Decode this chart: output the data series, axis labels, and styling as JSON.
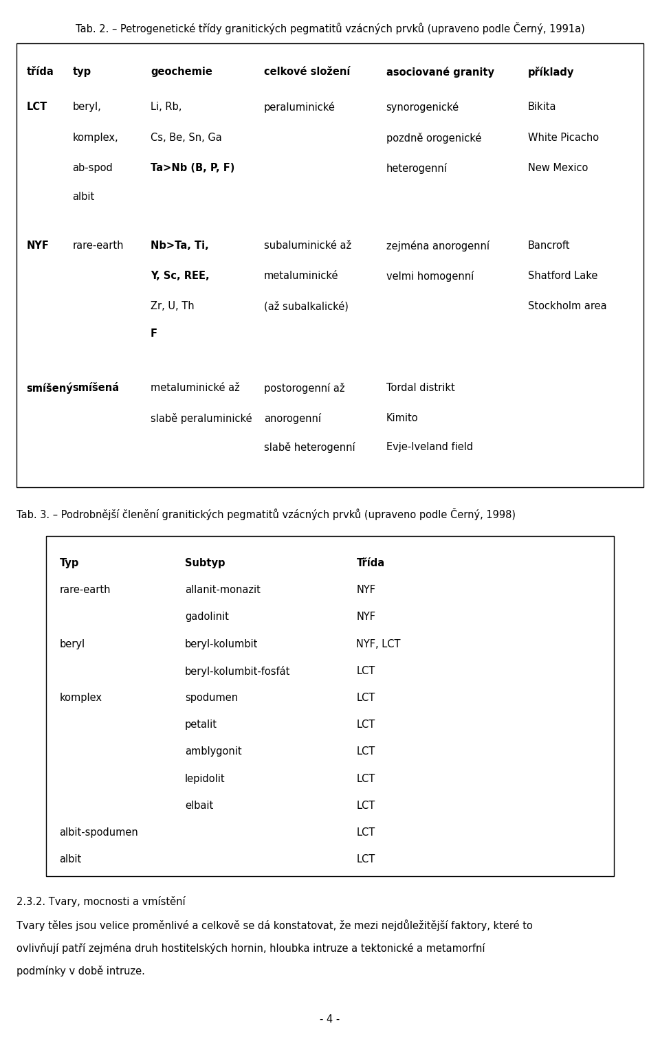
{
  "title1": "Tab. 2. – Petrogenetické třídy granitických pegmatitů vzácných prvků (upraveno podle Černý, 1991a)",
  "title2": "Tab. 3. – Podrobnější členění granitických pegmatitů vzácných prvků (upraveno podle Černý, 1998)",
  "section_heading": "2.3.2. Tvary, mocnosti a vmístění",
  "paragraph_lines": [
    "Tvary těles jsou velice proměnlivé a celkově se dá konstatovat, že mezi nejdůležitější faktory, které to",
    "ovlivňují patří zejména druh hostitelských hornin, hloubka intruze a tektonické a metamorfní",
    "podmínky v době intruze."
  ],
  "footer": "- 4 -",
  "table1_headers": [
    "třída",
    "typ",
    "geochemie",
    "celkové složení",
    "asociované granity",
    "příklady"
  ],
  "table1_rows": [
    {
      "col0": "LCT",
      "col1": "beryl,",
      "col2": "Li, Rb,",
      "col3": "peraluminické",
      "col4": "synorogenické",
      "col5": "Bikita",
      "bold0": true,
      "bold1": false,
      "bold2": false
    },
    {
      "col0": "",
      "col1": "komplex,",
      "col2": "Cs, Be, Sn, Ga",
      "col3": "",
      "col4": "pozdně orogenické",
      "col5": "White Picacho",
      "bold0": false,
      "bold1": false,
      "bold2": false
    },
    {
      "col0": "",
      "col1": "ab-spod",
      "col2": "Ta>Nb (B, P, F)",
      "col3": "",
      "col4": "heterogenní",
      "col5": "New Mexico",
      "bold0": false,
      "bold1": false,
      "bold2": true
    },
    {
      "col0": "",
      "col1": "albit",
      "col2": "",
      "col3": "",
      "col4": "",
      "col5": "",
      "bold0": false,
      "bold1": false,
      "bold2": false
    },
    {
      "col0": "NYF",
      "col1": "rare-earth",
      "col2": "Nb>Ta, Ti,",
      "col3": "subaluminické až",
      "col4": "zejména anorogenní",
      "col5": "Bancroft",
      "bold0": true,
      "bold1": false,
      "bold2": true
    },
    {
      "col0": "",
      "col1": "",
      "col2": "Y, Sc, REE,",
      "col3": "metaluminické",
      "col4": "velmi homogenní",
      "col5": "Shatford Lake",
      "bold0": false,
      "bold1": false,
      "bold2": true
    },
    {
      "col0": "",
      "col1": "",
      "col2": "Zr, U, Th",
      "col3": "(až subalkalické)",
      "col4": "",
      "col5": "Stockholm area",
      "bold0": false,
      "bold1": false,
      "bold2": false
    },
    {
      "col0": "",
      "col1": "",
      "col2": "F",
      "col3": "",
      "col4": "",
      "col5": "",
      "bold0": false,
      "bold1": false,
      "bold2": true
    },
    {
      "col0": "smíšený",
      "col1": "smíšená",
      "col2": "metaluminické až",
      "col3": "postorogenní až",
      "col4": "Tordal distrikt",
      "col5": "",
      "bold0": true,
      "bold1": true,
      "bold2": false
    },
    {
      "col0": "",
      "col1": "",
      "col2": "slabě peraluminické",
      "col3": "anorogenní",
      "col4": "Kimito",
      "col5": "",
      "bold0": false,
      "bold1": false,
      "bold2": false
    },
    {
      "col0": "",
      "col1": "",
      "col2": "",
      "col3": "slabě heterogenní",
      "col4": "Evje-Iveland field",
      "col5": "",
      "bold0": false,
      "bold1": false,
      "bold2": false
    }
  ],
  "table2_headers": [
    "Typ",
    "Subtyp",
    "Třída"
  ],
  "table2_rows": [
    {
      "col0": "rare-earth",
      "col1": "allanit-monazit",
      "col2": "NYF"
    },
    {
      "col0": "",
      "col1": "gadolinit",
      "col2": "NYF"
    },
    {
      "col0": "beryl",
      "col1": "beryl-kolumbit",
      "col2": "NYF, LCT"
    },
    {
      "col0": "",
      "col1": "beryl-kolumbit-fosfát",
      "col2": "LCT"
    },
    {
      "col0": "komplex",
      "col1": "spodumen",
      "col2": "LCT"
    },
    {
      "col0": "",
      "col1": "petalit",
      "col2": "LCT"
    },
    {
      "col0": "",
      "col1": "amblygonit",
      "col2": "LCT"
    },
    {
      "col0": "",
      "col1": "lepidolit",
      "col2": "LCT"
    },
    {
      "col0": "",
      "col1": "elbait",
      "col2": "LCT"
    },
    {
      "col0": "albit-spodumen",
      "col1": "",
      "col2": "LCT"
    },
    {
      "col0": "albit",
      "col1": "",
      "col2": "LCT"
    }
  ],
  "bg_color": "#ffffff",
  "text_color": "#000000",
  "fs": 10.5
}
